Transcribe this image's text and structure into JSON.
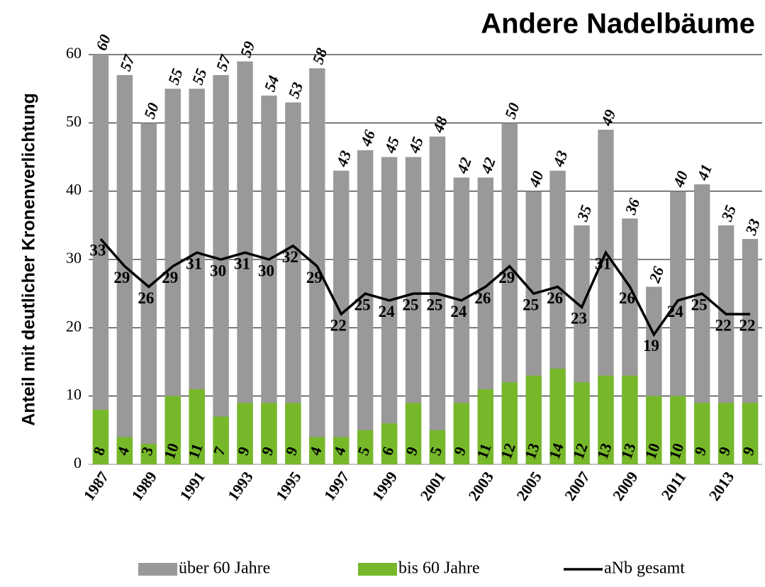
{
  "chart_data": {
    "type": "bar",
    "title": "Andere Nadelbäume",
    "y_label": "Anteil mit deutlicher Kronenverlichtung",
    "categories": [
      "1987",
      null,
      "1989",
      null,
      "1991",
      null,
      "1993",
      null,
      "1995",
      null,
      "1997",
      null,
      "1999",
      null,
      "2001",
      null,
      "2003",
      null,
      "2005",
      null,
      "2007",
      null,
      "2009",
      null,
      "2011",
      null,
      "2013",
      null
    ],
    "series": [
      {
        "name": "über 60 Jahre",
        "color": "#999999",
        "type": "bar",
        "values": [
          60,
          57,
          50,
          55,
          55,
          57,
          59,
          54,
          53,
          58,
          43,
          46,
          45,
          45,
          48,
          42,
          42,
          50,
          40,
          43,
          35,
          49,
          36,
          26,
          40,
          41,
          35,
          33
        ]
      },
      {
        "name": "bis 60 Jahre",
        "color": "#76b82a",
        "type": "bar",
        "values": [
          8,
          4,
          3,
          10,
          11,
          7,
          9,
          9,
          9,
          4,
          4,
          5,
          6,
          9,
          5,
          9,
          11,
          12,
          13,
          14,
          12,
          13,
          13,
          10,
          10,
          9,
          9,
          9
        ]
      },
      {
        "name": "aNb gesamt",
        "color": "#000000",
        "type": "line",
        "values": [
          33,
          29,
          26,
          29,
          31,
          30,
          31,
          30,
          32,
          29,
          22,
          25,
          24,
          25,
          25,
          24,
          26,
          29,
          25,
          26,
          23,
          31,
          26,
          19,
          24,
          25,
          22,
          22
        ]
      }
    ],
    "ylim": [
      0,
      60
    ],
    "yticks": [
      0,
      10,
      20,
      30,
      40,
      50,
      60
    ],
    "grid": true
  }
}
